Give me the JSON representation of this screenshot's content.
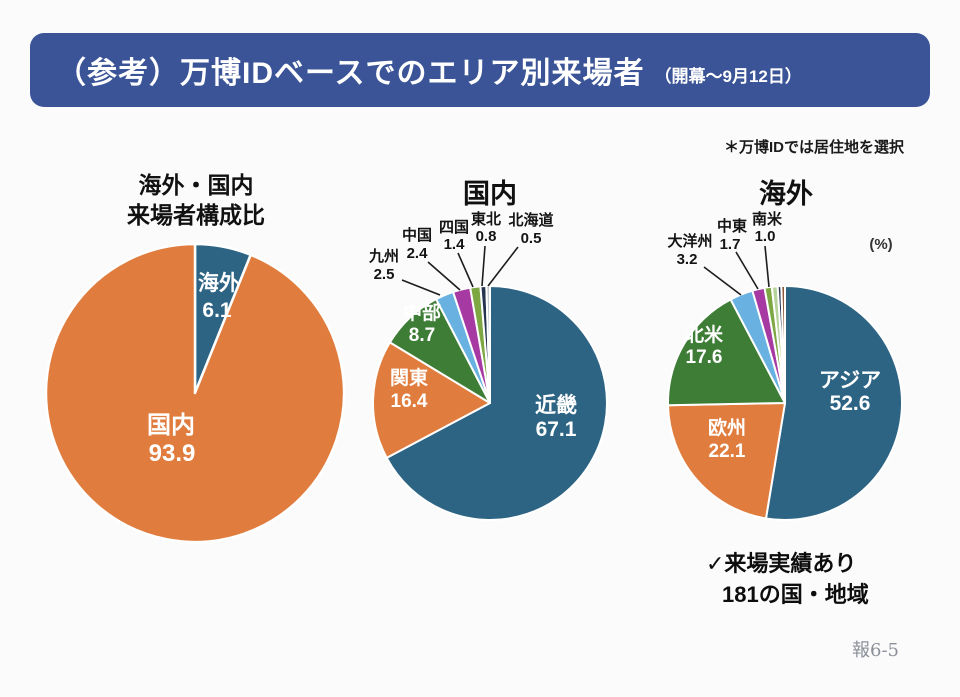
{
  "header": {
    "title": "（参考）万博IDベースでのエリア別来場者",
    "period": "（開幕～9月12日）"
  },
  "note": "＊万博IDでは居住地を選択",
  "footnote": {
    "line1": "✓来場実績あり",
    "line2": "181の国・地域"
  },
  "page_number": "報6-5",
  "colors": {
    "header_bg": "#3a5497",
    "teal": "#2d6484",
    "orange": "#e07d3e",
    "green": "#3e7d36",
    "light_blue": "#68b1e0",
    "magenta": "#a73aa2",
    "olive": "#7ca742",
    "navy": "#26344f",
    "gray": "#c6c9cc"
  },
  "chart_data": [
    {
      "type": "pie",
      "title_lines": [
        "海外・国内",
        "来場者構成比"
      ],
      "legend_position": "none",
      "labels_unit": "percent",
      "segments": [
        {
          "label": "海外",
          "value": 6.1,
          "color": "#2d6484"
        },
        {
          "label": "国内",
          "value": 93.9,
          "color": "#e07d3e"
        }
      ]
    },
    {
      "type": "pie",
      "title": "国内",
      "legend_position": "none",
      "labels_unit": "percent",
      "segments": [
        {
          "label": "近畿",
          "value": 67.1,
          "color": "#2d6484"
        },
        {
          "label": "関東",
          "value": 16.4,
          "color": "#e07d3e"
        },
        {
          "label": "中部",
          "value": 8.7,
          "color": "#3e7d36"
        },
        {
          "label": "九州",
          "value": 2.5,
          "color": "#68b1e0"
        },
        {
          "label": "中国",
          "value": 2.4,
          "color": "#a73aa2"
        },
        {
          "label": "四国",
          "value": 1.4,
          "color": "#7ca742"
        },
        {
          "label": "東北",
          "value": 0.8,
          "color": "#26344f"
        },
        {
          "label": "北海道",
          "value": 0.5,
          "color": "#c6c9cc"
        }
      ]
    },
    {
      "type": "pie",
      "title": "海外",
      "unit": "(%)",
      "legend_position": "none",
      "labels_unit": "percent",
      "segments": [
        {
          "label": "アジア",
          "value": 52.6,
          "color": "#2d6484"
        },
        {
          "label": "欧州",
          "value": 22.1,
          "color": "#e07d3e"
        },
        {
          "label": "北米",
          "value": 17.6,
          "color": "#3e7d36"
        },
        {
          "label": "大洋州",
          "value": 3.2,
          "color": "#68b1e0"
        },
        {
          "label": "中東",
          "value": 1.7,
          "color": "#a73aa2"
        },
        {
          "label": "南米",
          "value": 1.0,
          "color": "#7ca742"
        },
        {
          "label": "",
          "value": 0.8,
          "color": "#b5d39b"
        },
        {
          "label": "",
          "value": 0.5,
          "color": "#26344f"
        },
        {
          "label": "",
          "value": 0.5,
          "color": "#8a5a3b"
        }
      ]
    }
  ]
}
